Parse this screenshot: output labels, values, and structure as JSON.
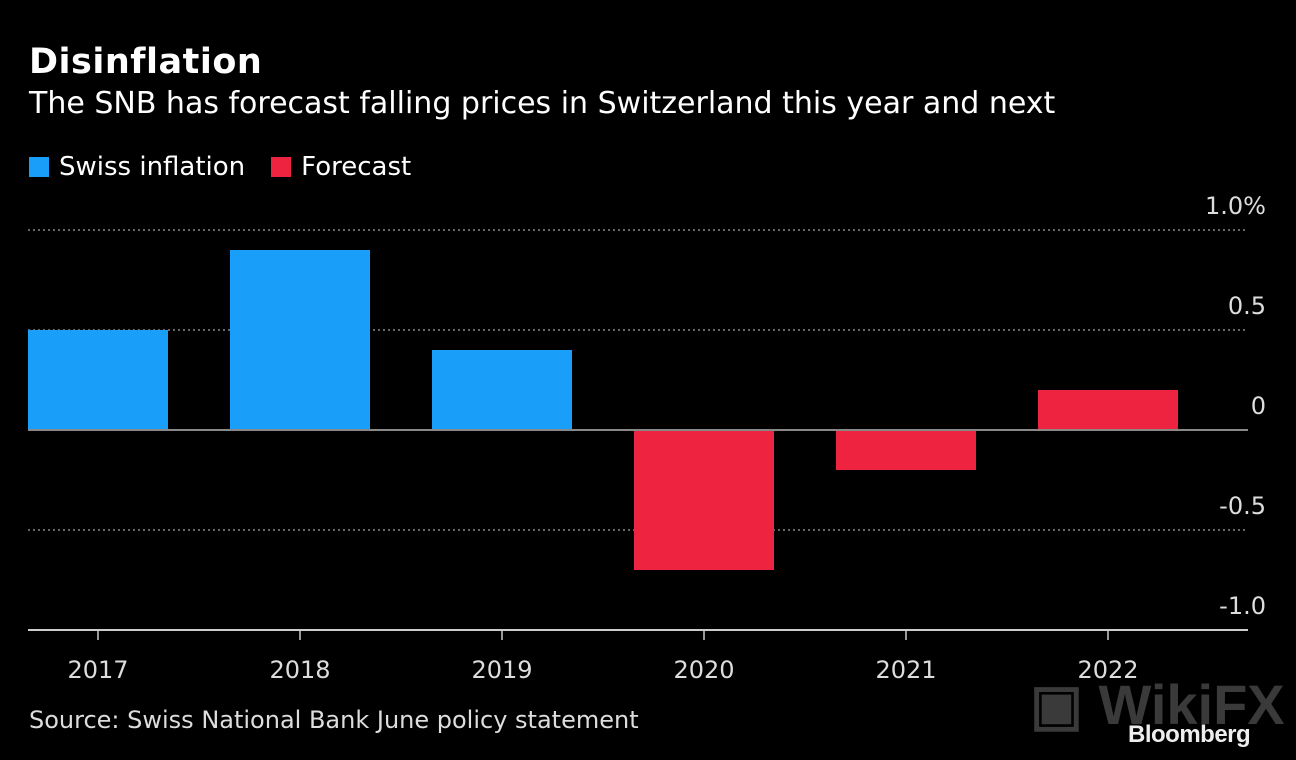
{
  "title": "Disinflation",
  "subtitle": "The SNB has forecast falling prices in Switzerland this year and next",
  "source": "Source: Swiss National Bank June policy statement",
  "brand": "Bloomberg",
  "watermark": "WikiFX",
  "chart_data": {
    "type": "bar",
    "categories": [
      "2017",
      "2018",
      "2019",
      "2020",
      "2021",
      "2022"
    ],
    "values": [
      0.5,
      0.9,
      0.4,
      -0.7,
      -0.2,
      0.2
    ],
    "series_by_category": [
      "Swiss inflation",
      "Swiss inflation",
      "Swiss inflation",
      "Forecast",
      "Forecast",
      "Forecast"
    ],
    "legend": [
      {
        "name": "Swiss inflation",
        "color": "#199ffa"
      },
      {
        "name": "Forecast",
        "color": "#ee2340"
      }
    ],
    "legend_placement": "top-left",
    "ylim": [
      -1.0,
      1.0
    ],
    "yticks": [
      1.0,
      0.5,
      0,
      -0.5,
      -1.0
    ],
    "ytick_labels": [
      "1.0%",
      "0.5",
      "0",
      "-0.5",
      "-1.0"
    ],
    "yaxis_side": "right",
    "grid": "dotted horizontal",
    "xlabel": "",
    "ylabel": ""
  }
}
